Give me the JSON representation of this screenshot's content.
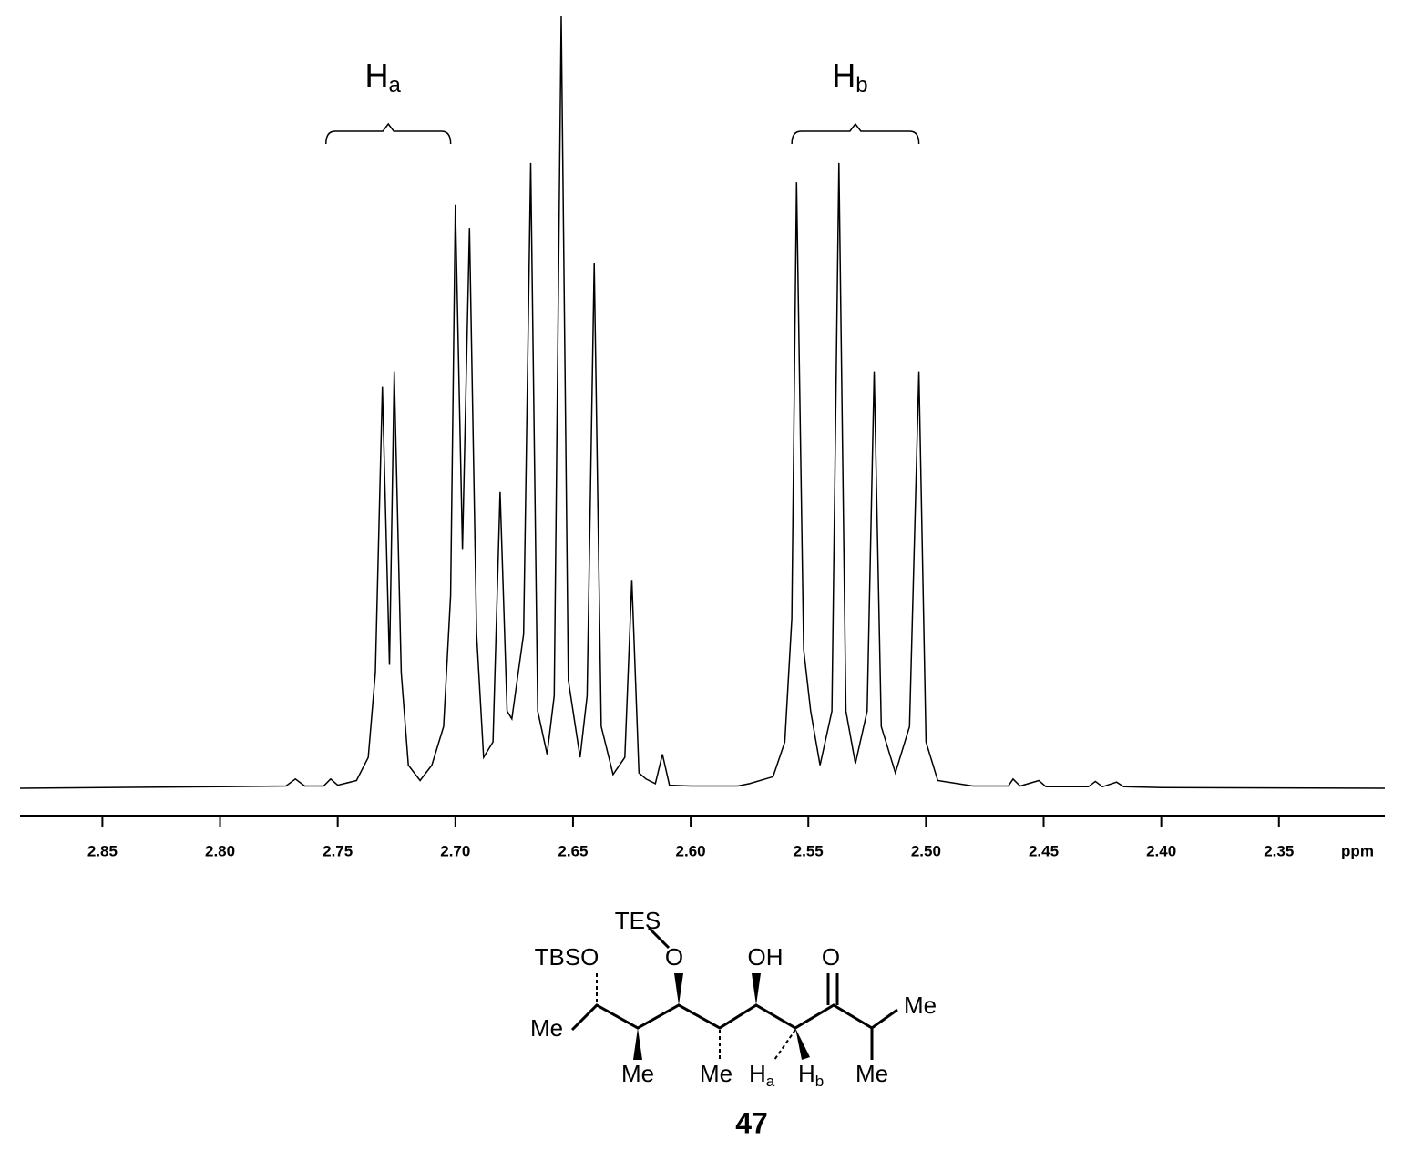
{
  "chart_data": {
    "type": "line",
    "color": "#000000",
    "xlabel": "ppm",
    "xlim": [
      2.885,
      2.305
    ],
    "ylim": [
      0,
      100
    ],
    "reverse_x": true,
    "xticks": [
      2.85,
      {
        "value": 2.8,
        "label": "2.80"
      },
      2.75,
      {
        "value": 2.7,
        "label": "2.70"
      },
      2.65,
      {
        "value": 2.6,
        "label": "2.60"
      },
      2.55,
      {
        "value": 2.5,
        "label": "2.50"
      },
      2.45,
      {
        "value": 2.4,
        "label": "2.40"
      },
      2.35
    ],
    "x": [
      2.885,
      2.8,
      2.772,
      2.768,
      2.764,
      2.756,
      2.753,
      2.75,
      2.742,
      2.737,
      2.734,
      2.731,
      2.728,
      2.726,
      2.723,
      2.72,
      2.715,
      2.71,
      2.705,
      2.702,
      2.7,
      2.697,
      2.694,
      2.691,
      2.688,
      2.684,
      2.681,
      2.678,
      2.676,
      2.671,
      2.668,
      2.665,
      2.661,
      2.658,
      2.655,
      2.652,
      2.647,
      2.644,
      2.641,
      2.638,
      2.633,
      2.628,
      2.625,
      2.622,
      2.619,
      2.615,
      2.612,
      2.609,
      2.6,
      2.58,
      2.575,
      2.565,
      2.56,
      2.557,
      2.555,
      2.552,
      2.549,
      2.545,
      2.54,
      2.537,
      2.534,
      2.53,
      2.525,
      2.522,
      2.519,
      2.513,
      2.507,
      2.503,
      2.5,
      2.495,
      2.48,
      2.465,
      2.463,
      2.46,
      2.452,
      2.449,
      2.431,
      2.428,
      2.425,
      2.419,
      2.416,
      2.4,
      2.305
    ],
    "values": [
      0,
      0.2,
      0.3,
      1.2,
      0.3,
      0.3,
      1.2,
      0.4,
      1,
      4,
      15,
      52,
      16,
      54,
      15,
      3,
      1,
      3,
      8,
      25,
      75.6,
      31,
      72.6,
      20,
      4,
      6,
      38.4,
      10,
      9,
      20,
      81,
      10,
      4.4,
      12,
      100,
      14,
      4,
      12,
      68,
      8,
      1.8,
      4,
      27,
      2,
      1.2,
      0.6,
      4.4,
      0.4,
      0.3,
      0.3,
      0.6,
      1.5,
      6,
      22,
      78.5,
      18,
      10,
      3,
      10,
      81,
      10,
      3.2,
      10,
      54,
      8,
      2,
      8,
      54,
      6,
      1,
      0.3,
      0.3,
      1.2,
      0.3,
      1,
      0.2,
      0.2,
      0.9,
      0.2,
      0.8,
      0.2,
      0.1,
      0
    ],
    "annotations": [
      {
        "label": "H",
        "subscript": "a",
        "x_range": [
          2.755,
          2.702
        ]
      },
      {
        "label": "H",
        "subscript": "b",
        "x_range": [
          2.557,
          2.503
        ]
      }
    ]
  },
  "structure": {
    "labels": [
      "TES",
      "TBSO",
      "O",
      "OH",
      "O",
      "Me",
      "Me",
      "Me",
      "Me",
      "Me"
    ],
    "hydrogens": [
      {
        "symbol": "H",
        "subscript": "a"
      },
      {
        "symbol": "H",
        "subscript": "b"
      }
    ],
    "compound_number": "47"
  }
}
